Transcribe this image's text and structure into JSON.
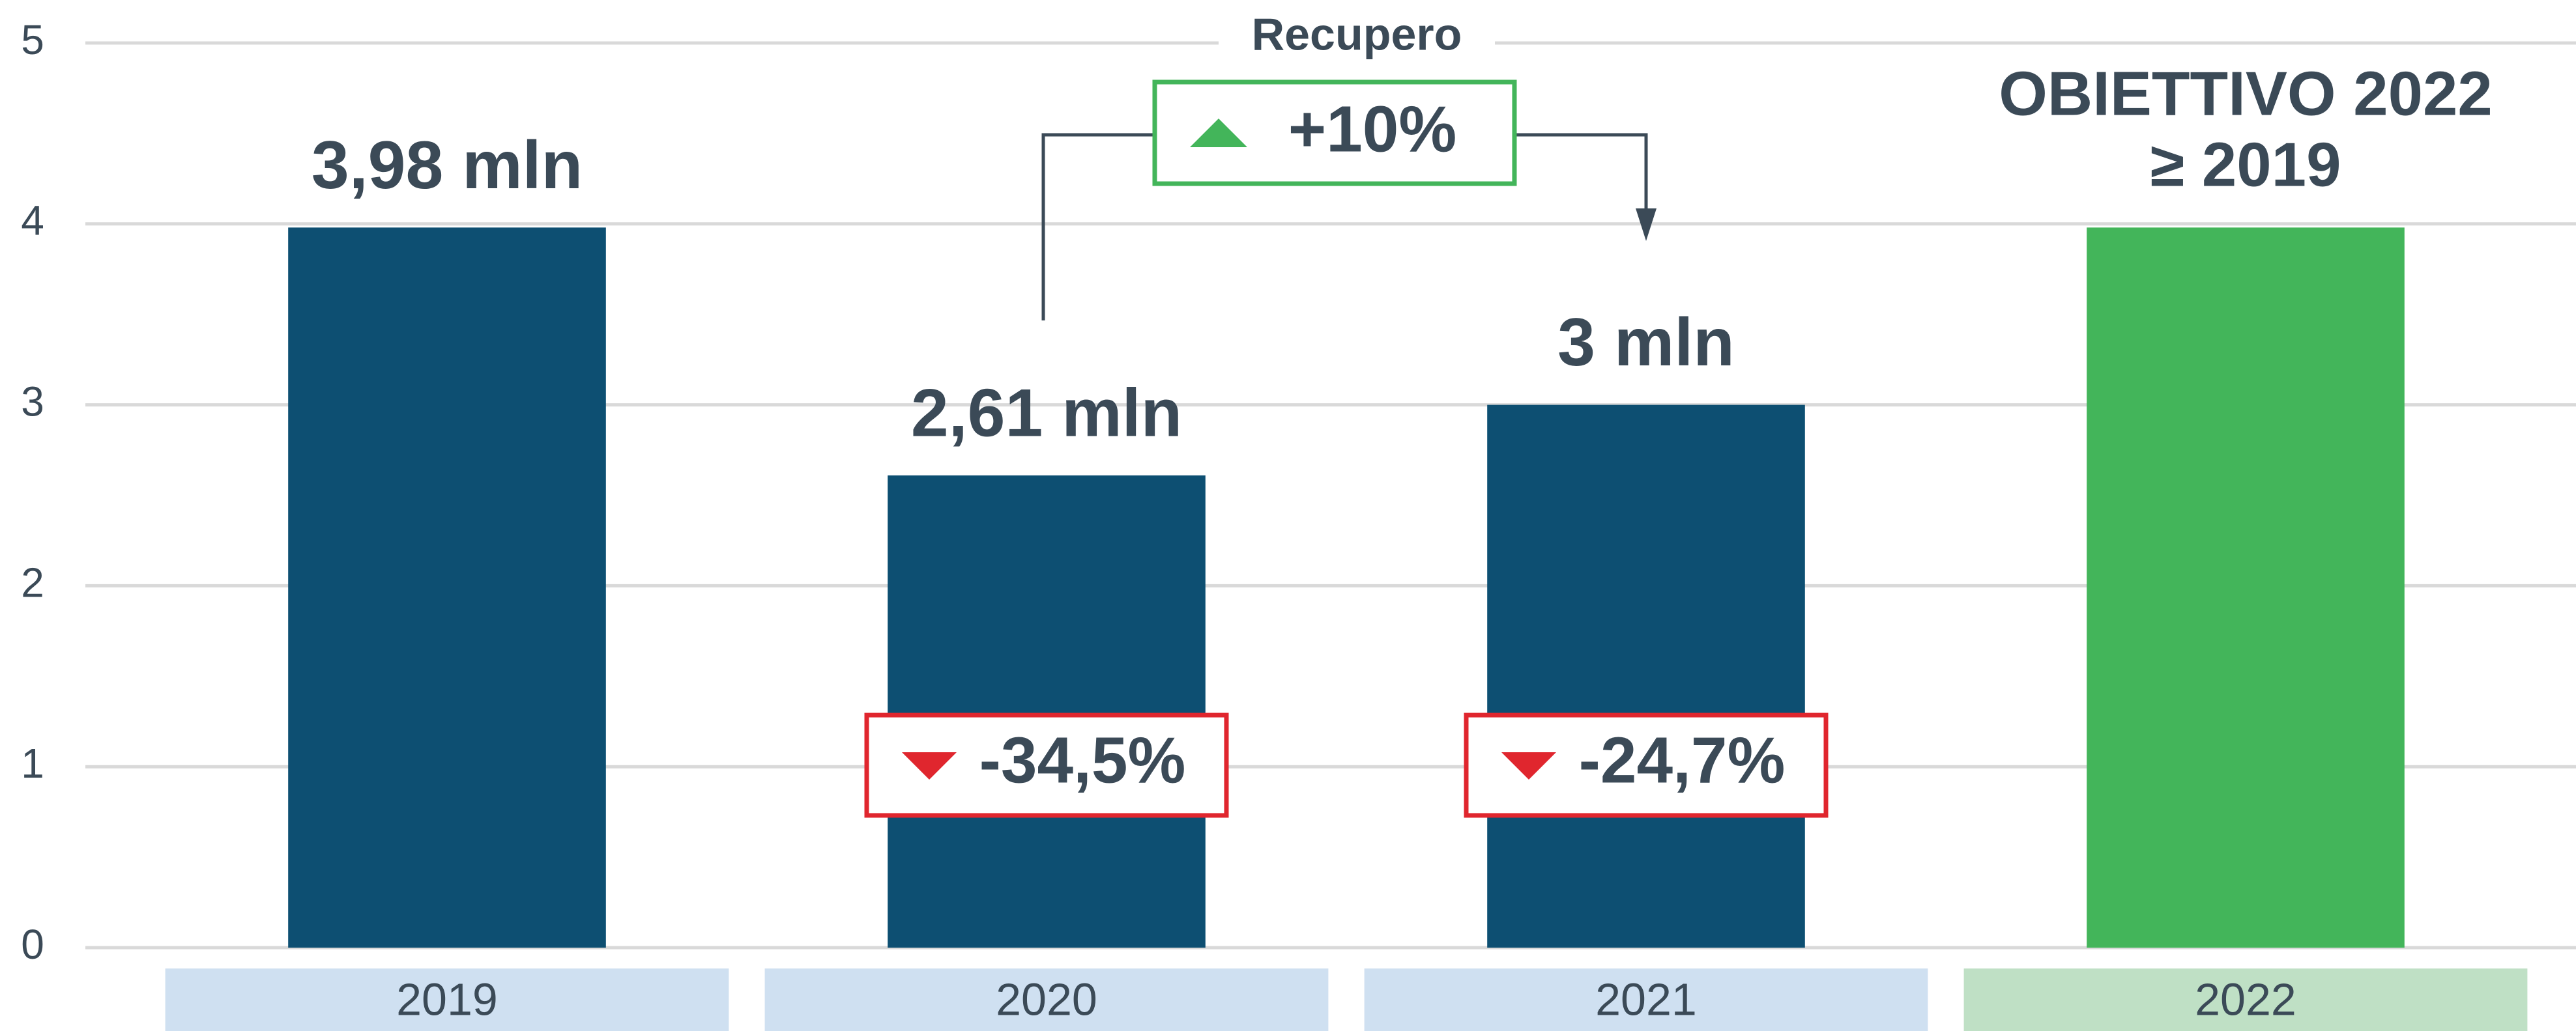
{
  "chart_data": {
    "type": "bar",
    "categories": [
      "2019",
      "2020",
      "2021",
      "2022"
    ],
    "values": [
      3.98,
      2.61,
      3,
      3.98
    ],
    "value_labels": [
      "3,98 mln",
      "2,61 mln",
      "3 mln",
      null
    ],
    "colors": [
      "#0d4f72",
      "#0d4f72",
      "#0d4f72",
      "#43b55a"
    ],
    "category_colors": [
      "#cfe0f1",
      "#cfe0f1",
      "#cfe0f1",
      "#bfe0c5"
    ],
    "ylim": [
      0,
      5
    ],
    "yticks": [
      0,
      1,
      2,
      3,
      4,
      5
    ],
    "grid": true,
    "recovery": {
      "label": "Recupero",
      "change": "+10%"
    },
    "changes": [
      "-34,5%",
      "-24,7%"
    ],
    "target_label": [
      "OBIETTIVO 2022",
      "≥ 2019"
    ]
  }
}
